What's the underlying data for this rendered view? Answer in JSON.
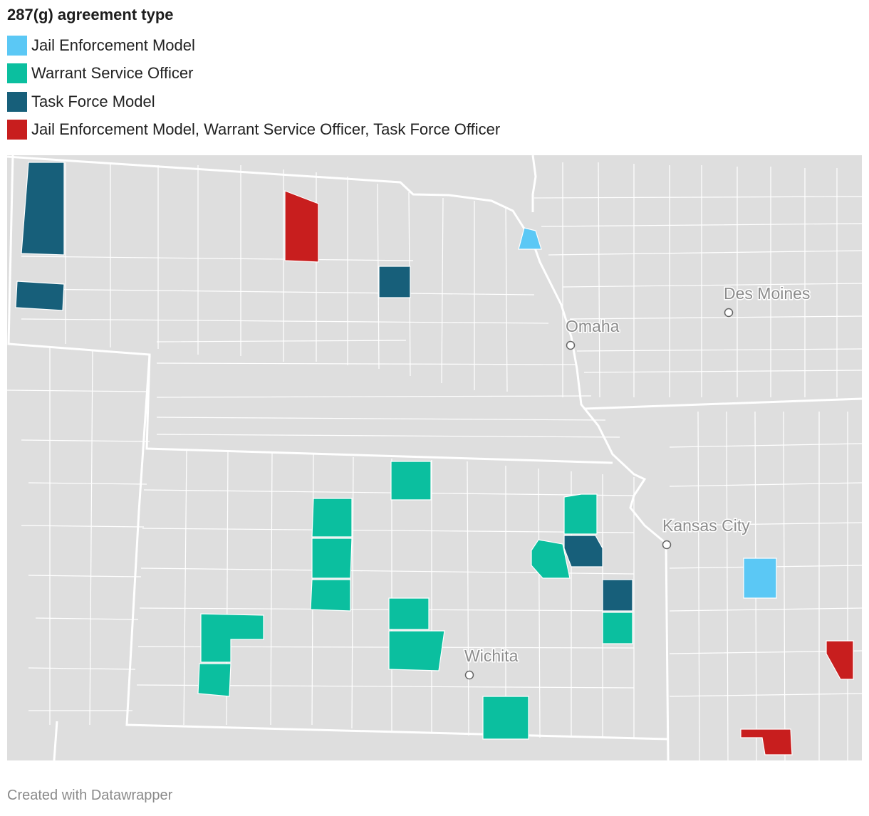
{
  "legend": {
    "title": "287(g) agreement type",
    "items": [
      {
        "label": "Jail Enforcement Model",
        "color": "#5bc8f5"
      },
      {
        "label": "Warrant Service Officer",
        "color": "#0bbf9f"
      },
      {
        "label": "Task Force Model",
        "color": "#175f7a"
      },
      {
        "label": "Jail Enforcement Model, Warrant Service Officer, Task Force Officer",
        "color": "#c81e1e"
      }
    ]
  },
  "map": {
    "base_fill": "#dedede",
    "county_border": "#ffffff",
    "cities": [
      {
        "name": "Des Moines"
      },
      {
        "name": "Omaha"
      },
      {
        "name": "Kansas City"
      },
      {
        "name": "Wichita"
      }
    ]
  },
  "footer": {
    "credit": "Created with Datawrapper"
  }
}
